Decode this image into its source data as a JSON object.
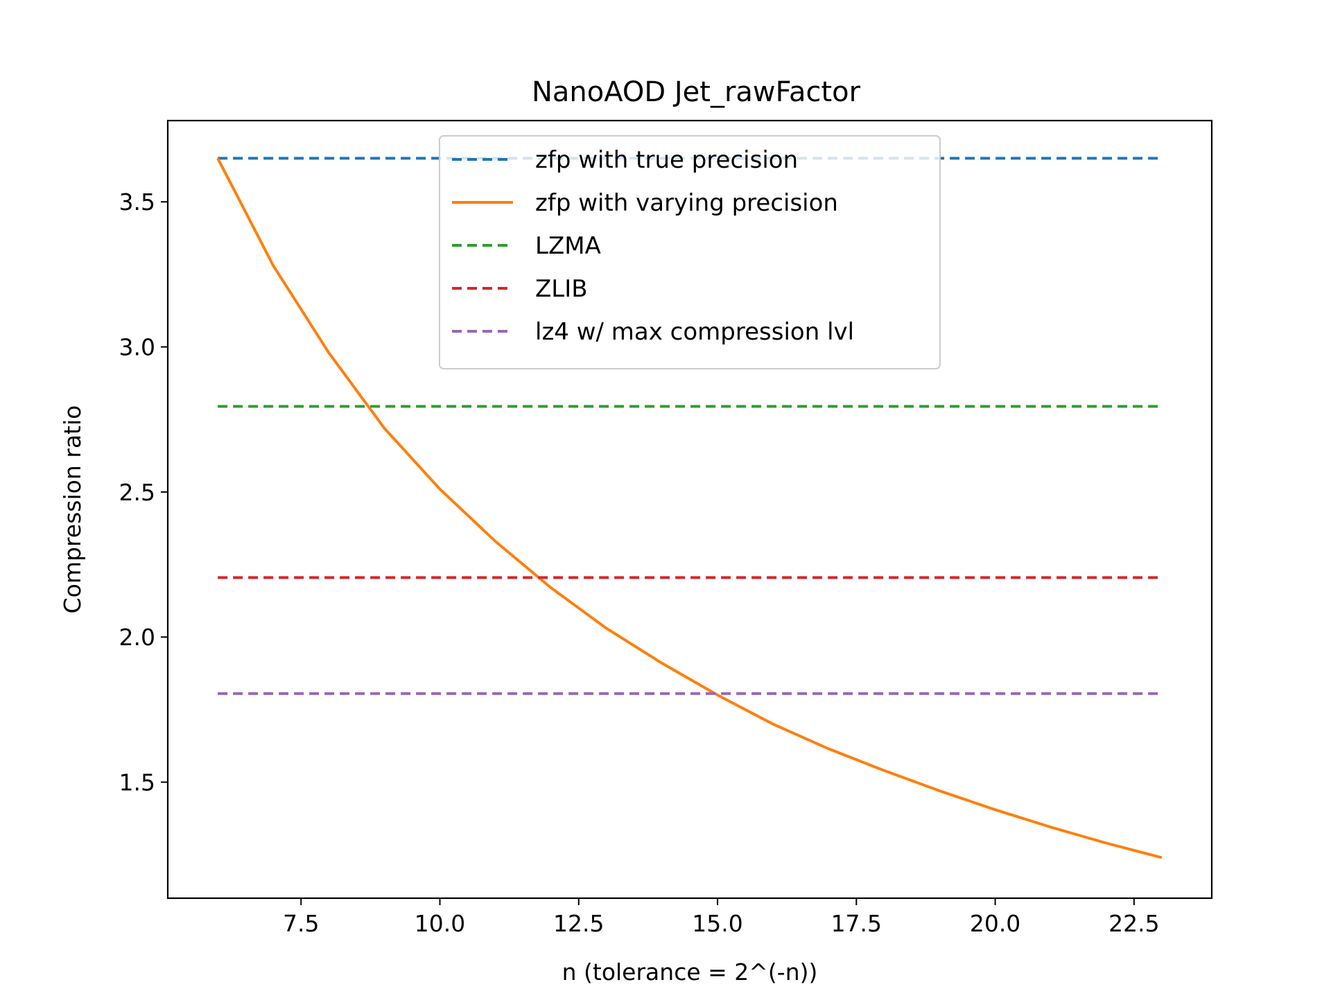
{
  "chart_data": {
    "type": "line",
    "title": "NanoAOD Jet_rawFactor",
    "xlabel": "n (tolerance = 2^(-n))",
    "ylabel": "Compression ratio",
    "xlim": [
      5.1,
      23.9
    ],
    "ylim": [
      1.1,
      3.78
    ],
    "xticks": [
      7.5,
      10.0,
      12.5,
      15.0,
      17.5,
      20.0,
      22.5
    ],
    "xtick_labels": [
      "7.5",
      "10.0",
      "12.5",
      "15.0",
      "17.5",
      "20.0",
      "22.5"
    ],
    "yticks": [
      1.5,
      2.0,
      2.5,
      3.0,
      3.5
    ],
    "ytick_labels": [
      "1.5",
      "2.0",
      "2.5",
      "3.0",
      "3.5"
    ],
    "grid": false,
    "legend_position": "top-center",
    "series": [
      {
        "name": "zfp with true precision",
        "style": "dashed",
        "color": "#1f77b4",
        "x": [
          6,
          23
        ],
        "y": [
          3.65,
          3.65
        ]
      },
      {
        "name": "zfp with varying precision",
        "style": "solid",
        "color": "#ff7f0e",
        "x": [
          6,
          7,
          8,
          9,
          10,
          11,
          12,
          13,
          14,
          15,
          16,
          17,
          18,
          19,
          20,
          21,
          22,
          23
        ],
        "y": [
          3.65,
          3.28,
          2.98,
          2.72,
          2.51,
          2.33,
          2.17,
          2.03,
          1.91,
          1.8,
          1.7,
          1.615,
          1.54,
          1.47,
          1.405,
          1.345,
          1.29,
          1.24
        ]
      },
      {
        "name": "LZMA",
        "style": "dashed",
        "color": "#2ca02c",
        "x": [
          6,
          23
        ],
        "y": [
          2.795,
          2.795
        ]
      },
      {
        "name": "ZLIB",
        "style": "dashed",
        "color": "#d62728",
        "x": [
          6,
          23
        ],
        "y": [
          2.205,
          2.205
        ]
      },
      {
        "name": "lz4 w/ max compression lvl",
        "style": "dashed",
        "color": "#9467bd",
        "x": [
          6,
          23
        ],
        "y": [
          1.805,
          1.805
        ]
      }
    ]
  }
}
